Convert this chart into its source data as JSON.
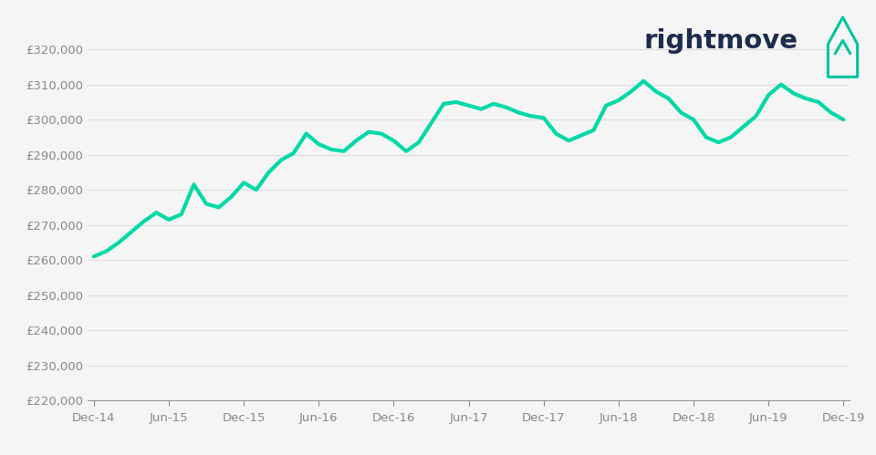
{
  "background_color": "#f5f5f5",
  "line_color": "#00d9a6",
  "line_width": 3.0,
  "ylim": [
    220000,
    325000
  ],
  "yticks": [
    220000,
    230000,
    240000,
    250000,
    260000,
    270000,
    280000,
    290000,
    300000,
    310000,
    320000
  ],
  "xtick_labels": [
    "Dec-14",
    "Jun-15",
    "Dec-15",
    "Jun-16",
    "Dec-16",
    "Jun-17",
    "Dec-17",
    "Jun-18",
    "Dec-18",
    "Jun-19",
    "Dec-19"
  ],
  "logo_text": "rightmove",
  "logo_color": "#1d2c4d",
  "logo_icon_color": "#00c4a0",
  "x_values": [
    0,
    1,
    2,
    3,
    4,
    5,
    6,
    7,
    8,
    9,
    10,
    11,
    12,
    13,
    14,
    15,
    16,
    17,
    18,
    19,
    20,
    21,
    22,
    23,
    24,
    25,
    26,
    27,
    28,
    29,
    30,
    31,
    32,
    33,
    34,
    35,
    36,
    37,
    38,
    39,
    40,
    41,
    42,
    43,
    44,
    45,
    46,
    47,
    48,
    49,
    50,
    51,
    52,
    53,
    54,
    55,
    56,
    57,
    58,
    59,
    60
  ],
  "y_values": [
    261000,
    262500,
    265000,
    268000,
    271000,
    273500,
    271500,
    273000,
    281500,
    276000,
    275000,
    278000,
    282000,
    280000,
    285000,
    288500,
    290500,
    296000,
    293000,
    291500,
    291000,
    294000,
    296500,
    296000,
    294000,
    291000,
    293500,
    299000,
    304500,
    305000,
    304000,
    303000,
    304500,
    303500,
    302000,
    301000,
    300500,
    296000,
    294000,
    295500,
    297000,
    304000,
    305500,
    308000,
    311000,
    308000,
    306000,
    302000,
    300000,
    295000,
    293500,
    295000,
    298000,
    301000,
    307000,
    310000,
    307500,
    306000,
    305000,
    302000,
    300000
  ]
}
